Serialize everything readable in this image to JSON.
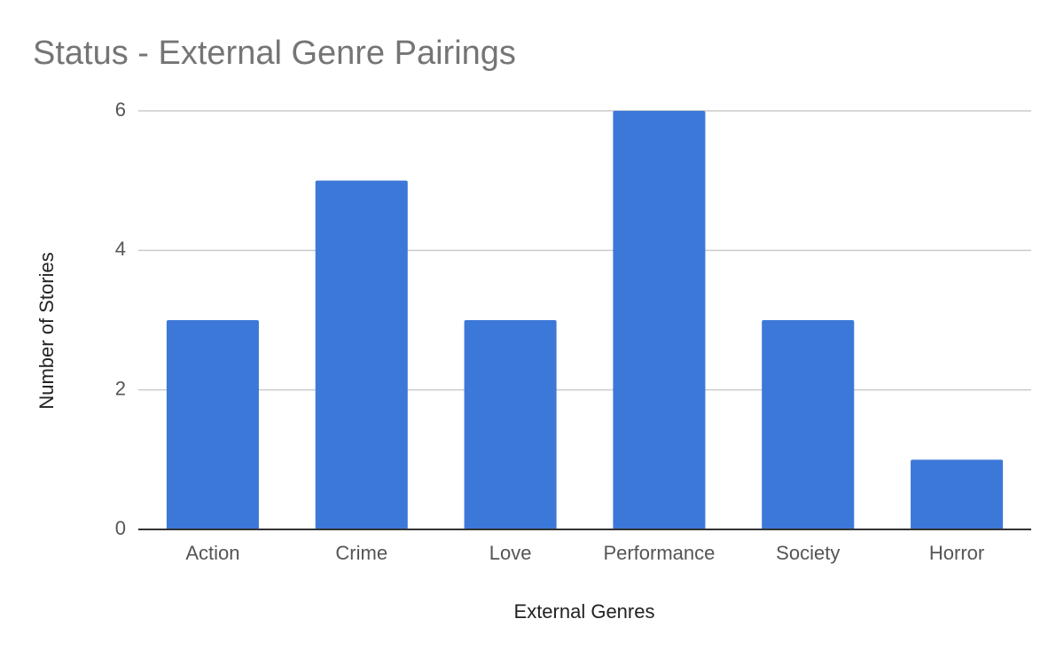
{
  "chart_data": {
    "type": "bar",
    "title": "Status - External Genre Pairings",
    "x_label": "External Genres",
    "y_label": "Number of Stories",
    "categories": [
      "Action",
      "Crime",
      "Love",
      "Performance",
      "Society",
      "Horror"
    ],
    "values": [
      3,
      5,
      3,
      6,
      3,
      1
    ],
    "color": "#3c78d8",
    "ylim": [
      0,
      6
    ],
    "yticks": [
      0,
      2,
      4,
      6
    ],
    "grid": true
  }
}
